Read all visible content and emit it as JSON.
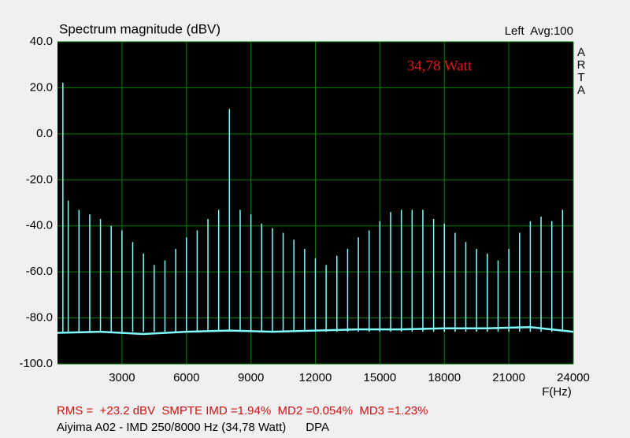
{
  "chart_data": {
    "type": "spectrum",
    "title": "Spectrum magnitude (dBV)",
    "channel_label": "Left  Avg:100",
    "side_label": "ARTA",
    "annotation": "34,78 Watt",
    "xlabel": "F(Hz)",
    "footer_measurements": "RMS =  +23.2 dBV  SMPTE IMD =1.94%  MD2 =0.054%  MD3 =1.23%",
    "footer_caption": "Aiyima A02 - IMD 250/8000 Hz (34,78 Watt)      DPA",
    "xlim": [
      0,
      24000
    ],
    "xticks": [
      3000,
      6000,
      9000,
      12000,
      15000,
      18000,
      21000,
      24000
    ],
    "ylim": [
      -100,
      40
    ],
    "yticks": [
      {
        "value": -100,
        "label": "-100.0"
      },
      {
        "value": -80,
        "label": "-80.0"
      },
      {
        "value": -60,
        "label": "-60.0"
      },
      {
        "value": -40,
        "label": "-40.0"
      },
      {
        "value": -20,
        "label": "-20.0"
      },
      {
        "value": 0,
        "label": "0.0"
      },
      {
        "value": 20,
        "label": "20.0"
      },
      {
        "value": 40,
        "label": "40.0"
      }
    ],
    "grid": true,
    "grid_color": "#008000",
    "plot_background": "#000000",
    "color": "#80ffff",
    "spikes": {
      "x": [
        250,
        500,
        1000,
        1500,
        2000,
        2500,
        3000,
        3500,
        4000,
        4500,
        5000,
        5500,
        6000,
        6500,
        7000,
        7500,
        8000,
        8500,
        9000,
        9500,
        10000,
        10500,
        11000,
        11500,
        12000,
        12500,
        13000,
        13500,
        14000,
        14500,
        15000,
        15500,
        16000,
        16500,
        17000,
        17500,
        18000,
        18500,
        19000,
        19500,
        20000,
        20500,
        21000,
        21500,
        22000,
        22500,
        23000,
        23500
      ],
      "values": [
        22.2,
        -29,
        -33,
        -35,
        -37,
        -40,
        -42,
        -47,
        -52,
        -57,
        -55,
        -50,
        -45,
        -42,
        -37,
        -33,
        10.8,
        -33,
        -35,
        -39,
        -41,
        -43,
        -46,
        -50,
        -54,
        -57,
        -53,
        -50,
        -45,
        -42,
        -38,
        -34,
        -33,
        -33,
        -33,
        -37,
        -39,
        -43,
        -47,
        -50,
        -52,
        -55,
        -50,
        -43,
        -38,
        -36,
        -38,
        -33
      ]
    },
    "floor": {
      "x": [
        0,
        2000,
        4000,
        6000,
        8000,
        10000,
        12000,
        14000,
        16000,
        18000,
        20000,
        22000,
        24000
      ],
      "values": [
        -86.5,
        -86,
        -87,
        -86,
        -85.5,
        -86,
        -85.5,
        -85,
        -85,
        -84.5,
        -84.5,
        -84,
        -86
      ]
    }
  }
}
